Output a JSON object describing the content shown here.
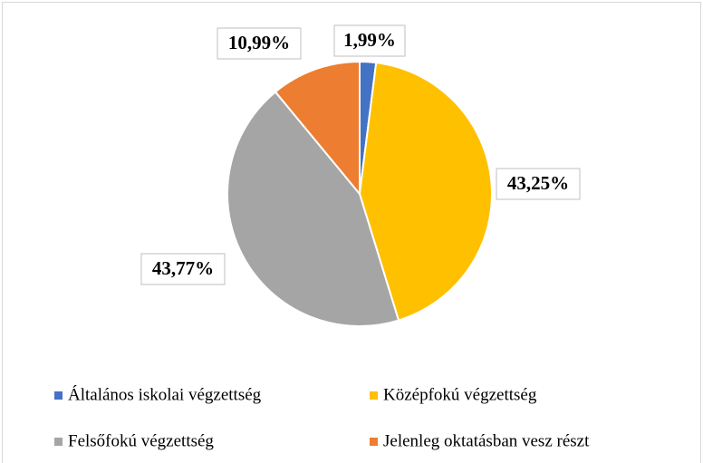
{
  "chart_data": {
    "type": "pie",
    "categories": [
      "Általános iskolai végzettség",
      "Középfokú végzettség",
      "Felsőfokú végzettség",
      "Jelenleg oktatásban vesz részt"
    ],
    "values": [
      1.99,
      43.25,
      43.77,
      10.99
    ],
    "value_labels": [
      "1,99%",
      "43,25%",
      "43,77%",
      "10,99%"
    ],
    "colors": [
      "#4472c4",
      "#ffc000",
      "#a5a5a5",
      "#ed7d31"
    ]
  }
}
